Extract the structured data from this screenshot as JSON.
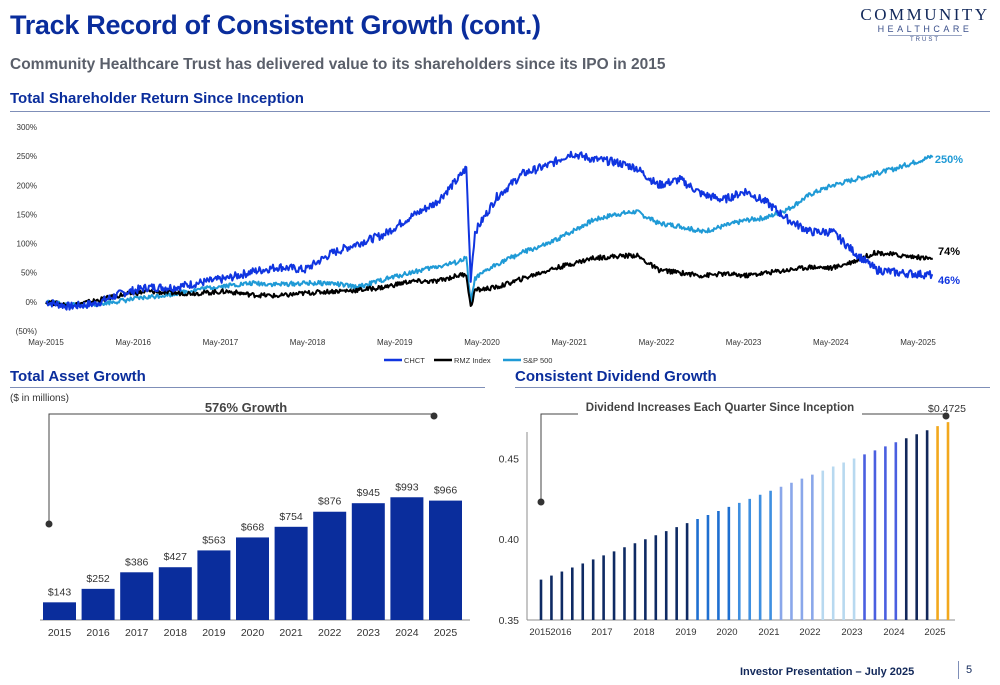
{
  "header": {
    "title": "Track Record of Consistent Growth (cont.)",
    "subtitle": "Community Healthcare Trust has delivered value to its shareholders since its IPO in 2015",
    "logo": {
      "line1": "COMMUNITY",
      "line2": "HEALTHCARE",
      "line3": "TRUST"
    }
  },
  "sections": {
    "tsr_title": "Total Shareholder Return Since Inception",
    "asset_title": "Total Asset Growth",
    "asset_unit": "($ in millions)",
    "dividend_title": "Consistent Dividend Growth"
  },
  "footer": {
    "text": "Investor Presentation – July 2025",
    "page": "5"
  },
  "colors": {
    "chct": "#1035e0",
    "rmz": "#000000",
    "sp500": "#1f9ad6",
    "bar_blue": "#0a2d9c",
    "accent_gold": "#f2a81d"
  },
  "chart_data": [
    {
      "type": "line",
      "title": "Total Shareholder Return Since Inception",
      "x_ticks": [
        "May-2015",
        "May-2016",
        "May-2017",
        "May-2018",
        "May-2019",
        "May-2020",
        "May-2021",
        "May-2022",
        "May-2023",
        "May-2024",
        "May-2025"
      ],
      "y_ticks": [
        "(50%)",
        "0%",
        "50%",
        "100%",
        "150%",
        "200%",
        "250%",
        "300%"
      ],
      "ylim": [
        -50,
        300
      ],
      "grid": false,
      "legend_position": "bottom-center",
      "x": [
        2015.33,
        2015.6,
        2015.9,
        2016.2,
        2016.5,
        2016.8,
        2017.1,
        2017.4,
        2017.7,
        2018.0,
        2018.3,
        2018.6,
        2018.9,
        2019.2,
        2019.5,
        2019.8,
        2020.05,
        2020.15,
        2020.2,
        2020.25,
        2020.5,
        2020.8,
        2021.1,
        2021.35,
        2021.6,
        2021.85,
        2022.1,
        2022.35,
        2022.6,
        2022.85,
        2023.1,
        2023.35,
        2023.6,
        2023.85,
        2024.1,
        2024.35,
        2024.6,
        2024.85,
        2025.1,
        2025.5
      ],
      "series": [
        {
          "name": "CHCT",
          "end_label": "46%",
          "values": [
            0,
            -8,
            -3,
            15,
            25,
            25,
            33,
            40,
            52,
            60,
            55,
            83,
            100,
            115,
            145,
            170,
            210,
            230,
            40,
            120,
            180,
            220,
            235,
            255,
            245,
            240,
            230,
            200,
            210,
            185,
            175,
            190,
            170,
            140,
            120,
            120,
            85,
            55,
            50,
            46
          ]
        },
        {
          "name": "RMZ Index",
          "end_label": "74%",
          "values": [
            0,
            -6,
            2,
            12,
            18,
            15,
            15,
            18,
            12,
            10,
            15,
            18,
            20,
            25,
            35,
            35,
            45,
            48,
            -10,
            20,
            25,
            40,
            55,
            65,
            75,
            78,
            80,
            55,
            50,
            45,
            48,
            45,
            50,
            55,
            60,
            58,
            70,
            85,
            80,
            74
          ]
        },
        {
          "name": "S&P 500",
          "end_label": "250%",
          "values": [
            0,
            -6,
            -4,
            2,
            8,
            14,
            22,
            28,
            32,
            30,
            32,
            32,
            25,
            38,
            50,
            60,
            68,
            75,
            -3,
            40,
            65,
            85,
            100,
            120,
            140,
            150,
            155,
            135,
            130,
            120,
            130,
            140,
            145,
            160,
            185,
            200,
            210,
            220,
            230,
            250
          ]
        }
      ]
    },
    {
      "type": "bar",
      "title": "Total Asset Growth",
      "annotation": "576% Growth",
      "categories": [
        "2015",
        "2016",
        "2017",
        "2018",
        "2019",
        "2020",
        "2021",
        "2022",
        "2023",
        "2024",
        "2025"
      ],
      "values": [
        143,
        252,
        386,
        427,
        563,
        668,
        754,
        876,
        945,
        993,
        966
      ],
      "labels": [
        "$143",
        "$252",
        "$386",
        "$427",
        "$563",
        "$668",
        "$754",
        "$876",
        "$945",
        "$993",
        "$966"
      ],
      "ylim": [
        0,
        1100
      ]
    },
    {
      "type": "bar",
      "title": "Consistent Dividend Growth",
      "annotation": "Dividend Increases Each Quarter Since Inception",
      "x_ticks": [
        "2015",
        "2016",
        "2017",
        "2018",
        "2019",
        "2020",
        "2021",
        "2022",
        "2023",
        "2024",
        "2025"
      ],
      "y_ticks": [
        "0.35",
        "0.40",
        "0.45"
      ],
      "ylim": [
        0.35,
        0.48
      ],
      "last_label": "$0.4725",
      "values": [
        0.375,
        0.3775,
        0.38,
        0.3825,
        0.385,
        0.3875,
        0.39,
        0.3925,
        0.395,
        0.3975,
        0.4,
        0.4025,
        0.405,
        0.4075,
        0.41,
        0.4125,
        0.415,
        0.4175,
        0.42,
        0.4225,
        0.425,
        0.4275,
        0.43,
        0.4325,
        0.435,
        0.4375,
        0.44,
        0.4425,
        0.445,
        0.4475,
        0.45,
        0.4525,
        0.455,
        0.4575,
        0.46,
        0.4625,
        0.465,
        0.4675,
        0.47,
        0.4725
      ]
    }
  ]
}
